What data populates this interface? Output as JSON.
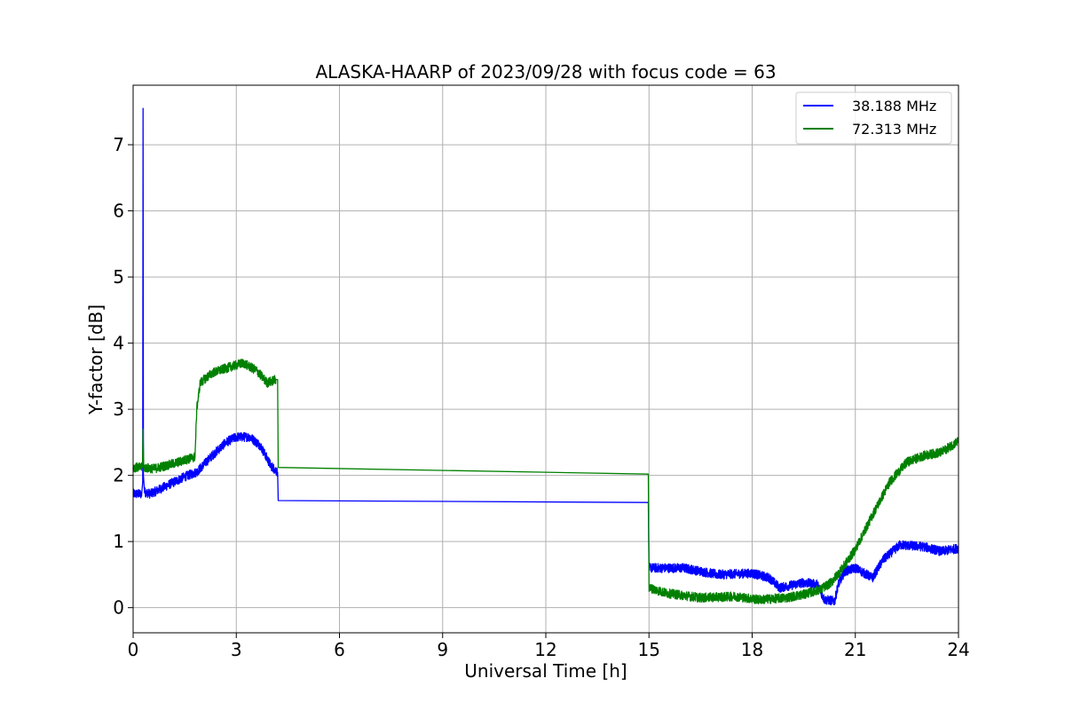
{
  "chart_data": {
    "type": "line",
    "title": "ALASKA-HAARP of 2023/09/28 with focus code = 63",
    "xlabel": "Universal Time [h]",
    "ylabel": "Y-factor [dB]",
    "xlim": [
      0,
      24
    ],
    "ylim": [
      -0.38,
      7.9
    ],
    "xticks": [
      0,
      3,
      6,
      9,
      12,
      15,
      18,
      21,
      24
    ],
    "xtick_labels": [
      "0",
      "3",
      "6",
      "9",
      "12",
      "15",
      "18",
      "21",
      "24"
    ],
    "yticks": [
      0,
      1,
      2,
      3,
      4,
      5,
      6,
      7
    ],
    "ytick_labels": [
      "0",
      "1",
      "2",
      "3",
      "4",
      "5",
      "6",
      "7"
    ],
    "grid": true,
    "legend_position": "top-right",
    "series": [
      {
        "name": "38.188 MHz",
        "color": "#0000ff",
        "noise": 0.07,
        "points": [
          [
            0.0,
            1.72
          ],
          [
            0.25,
            1.72
          ],
          [
            0.28,
            1.9
          ],
          [
            0.29,
            7.55
          ],
          [
            0.3,
            2.0
          ],
          [
            0.33,
            1.75
          ],
          [
            0.5,
            1.72
          ],
          [
            1.0,
            1.85
          ],
          [
            1.5,
            1.98
          ],
          [
            1.85,
            2.05
          ],
          [
            2.3,
            2.3
          ],
          [
            2.7,
            2.5
          ],
          [
            3.0,
            2.58
          ],
          [
            3.4,
            2.58
          ],
          [
            3.7,
            2.45
          ],
          [
            4.0,
            2.15
          ],
          [
            4.2,
            2.05
          ],
          [
            4.22,
            1.62
          ],
          [
            14.98,
            1.59
          ],
          [
            15.0,
            0.6
          ],
          [
            16.0,
            0.6
          ],
          [
            17.0,
            0.5
          ],
          [
            18.0,
            0.52
          ],
          [
            18.5,
            0.45
          ],
          [
            18.8,
            0.3
          ],
          [
            19.5,
            0.38
          ],
          [
            19.9,
            0.35
          ],
          [
            20.1,
            0.12
          ],
          [
            20.4,
            0.1
          ],
          [
            20.5,
            0.35
          ],
          [
            20.7,
            0.55
          ],
          [
            21.0,
            0.6
          ],
          [
            21.5,
            0.45
          ],
          [
            21.8,
            0.72
          ],
          [
            22.3,
            0.95
          ],
          [
            23.0,
            0.92
          ],
          [
            23.5,
            0.85
          ],
          [
            24.0,
            0.9
          ]
        ]
      },
      {
        "name": "72.313 MHz",
        "color": "#008000",
        "noise": 0.07,
        "points": [
          [
            0.0,
            2.12
          ],
          [
            0.27,
            2.12
          ],
          [
            0.29,
            2.7
          ],
          [
            0.31,
            2.12
          ],
          [
            0.6,
            2.1
          ],
          [
            1.2,
            2.18
          ],
          [
            1.8,
            2.28
          ],
          [
            1.85,
            3.0
          ],
          [
            1.95,
            3.4
          ],
          [
            2.3,
            3.55
          ],
          [
            2.7,
            3.62
          ],
          [
            3.2,
            3.7
          ],
          [
            3.6,
            3.58
          ],
          [
            3.9,
            3.4
          ],
          [
            4.15,
            3.45
          ],
          [
            4.2,
            3.45
          ],
          [
            4.22,
            2.12
          ],
          [
            14.98,
            2.02
          ],
          [
            15.0,
            0.3
          ],
          [
            15.5,
            0.22
          ],
          [
            16.5,
            0.15
          ],
          [
            17.5,
            0.17
          ],
          [
            18.2,
            0.12
          ],
          [
            19.0,
            0.15
          ],
          [
            19.5,
            0.2
          ],
          [
            20.0,
            0.28
          ],
          [
            20.3,
            0.38
          ],
          [
            20.6,
            0.58
          ],
          [
            21.0,
            0.88
          ],
          [
            21.5,
            1.4
          ],
          [
            22.0,
            1.9
          ],
          [
            22.5,
            2.2
          ],
          [
            23.0,
            2.3
          ],
          [
            23.5,
            2.35
          ],
          [
            24.0,
            2.52
          ]
        ]
      }
    ]
  }
}
